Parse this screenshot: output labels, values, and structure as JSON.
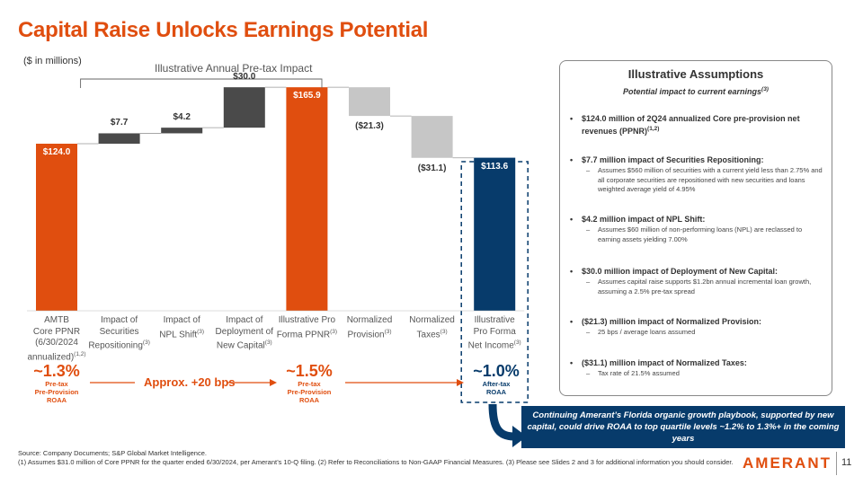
{
  "title": "Capital Raise Unlocks Earnings Potential",
  "units_note": "($ in millions)",
  "chart_header": "Illustrative Annual Pre-tax Impact",
  "colors": {
    "orange": "#e04e0f",
    "navy": "#073b6b",
    "dark_gray": "#4a4a4a",
    "light_gray": "#c6c6c6"
  },
  "chart_data": {
    "type": "waterfall",
    "title": "Illustrative Annual Pre-tax Impact",
    "categories": [
      {
        "label": "AMTB\nCore PPNR\n(6/30/2024\nannualized)",
        "sup": "(1,2)"
      },
      {
        "label": "Impact of\nSecurities\nRepositioning",
        "sup": "(3)"
      },
      {
        "label": "Impact of\nNPL Shift",
        "sup": "(3)"
      },
      {
        "label": "Impact of\nDeployment of\nNew Capital",
        "sup": "(3)"
      },
      {
        "label": "Illustrative Pro\nForma PPNR",
        "sup": "(3)"
      },
      {
        "label": "Normalized\nProvision",
        "sup": "(3)"
      },
      {
        "label": "Normalized\nTaxes",
        "sup": "(3)"
      },
      {
        "label": "Illustrative\nPro Forma\nNet Income",
        "sup": "(3)"
      }
    ],
    "values": [
      124.0,
      7.7,
      4.2,
      30.0,
      165.9,
      -21.3,
      -31.1,
      113.6
    ],
    "kinds": [
      "total",
      "increase",
      "increase",
      "increase",
      "total",
      "decrease",
      "decrease",
      "total"
    ],
    "value_labels": [
      "$124.0",
      "$7.7",
      "$4.2",
      "$30.0",
      "$165.9",
      "($21.3)",
      "($31.1)",
      "$113.6"
    ]
  },
  "roaa": [
    {
      "value": "~1.3%",
      "label": "Pre-tax\nPre-Provision\nROAA"
    },
    {
      "value": "~1.5%",
      "label": "Pre-tax\nPre-Provision\nROAA"
    },
    {
      "value": "~1.0%",
      "label": "After-tax\nROAA"
    }
  ],
  "approx_text": "Approx. +20 bps",
  "assumptions": {
    "title": "Illustrative Assumptions",
    "subtitle": "Potential impact to current earnings",
    "subtitle_sup": "(3)",
    "bullets": [
      {
        "text": "$124.0 million of 2Q24 annualized Core pre-provision net revenues (PPNR)",
        "sup": "(1,2)",
        "subs": []
      },
      {
        "text": "$7.7 million impact of Securities Repositioning:",
        "sup": "",
        "subs": [
          "Assumes $560 million of securities with a current yield less than 2.75% and all corporate securities are repositioned with new securities and loans weighted average yield of 4.95%"
        ]
      },
      {
        "text": "$4.2 million impact of NPL Shift:",
        "sup": "",
        "subs": [
          "Assumes $60 million of non-performing loans (NPL) are reclassed to earning assets yielding 7.00%"
        ]
      },
      {
        "text": "$30.0 million impact of Deployment of New Capital:",
        "sup": "",
        "subs": [
          "Assumes capital raise supports $1.2bn annual incremental loan growth, assuming a 2.5% pre-tax spread"
        ]
      },
      {
        "text": "($21.3) million impact of Normalized Provision:",
        "sup": "",
        "subs": [
          "25 bps / average loans assumed"
        ]
      },
      {
        "text": "($31.1) million impact of Normalized Taxes:",
        "sup": "",
        "subs": [
          "Tax rate of 21.5% assumed"
        ]
      }
    ]
  },
  "callout": "Continuing Amerant’s Florida organic growth playbook, supported by new capital, could drive ROAA to top quartile levels ~1.2% to 1.3%+ in the coming years",
  "source_lines": [
    "Source: Company Documents; S&P Global Market Intelligence.",
    "(1) Assumes $31.0 million of Core PPNR for the quarter ended 6/30/2024, per Amerant’s 10-Q filing. (2) Refer to Reconciliations to Non-GAAP Financial Measures. (3) Please see Slides 2 and 3 for additional information you should consider."
  ],
  "logo_text": "AMERANT",
  "page_number": "11"
}
